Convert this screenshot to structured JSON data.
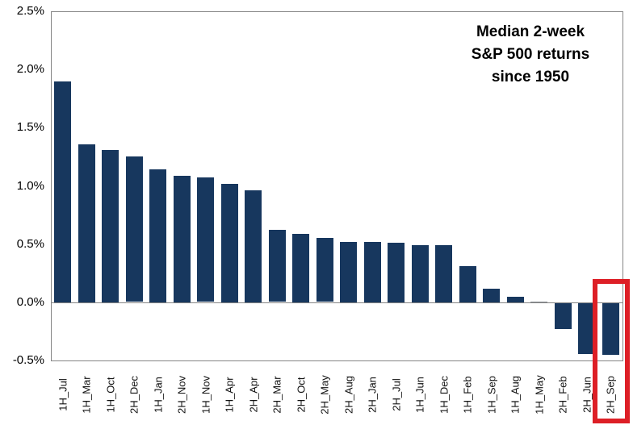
{
  "chart_data": {
    "type": "bar",
    "title": "Median 2-week S&P 500 returns since 1950",
    "title_lines": [
      "Median 2-week",
      "S&P 500 returns",
      "since 1950"
    ],
    "unit": "%",
    "categories": [
      "1H_Jul",
      "1H_Mar",
      "1H_Oct",
      "2H_Dec",
      "1H_Jan",
      "2H_Nov",
      "1H_Nov",
      "1H_Apr",
      "2H_Apr",
      "2H_Mar",
      "2H_Oct",
      "2H_May",
      "2H_Aug",
      "2H_Jan",
      "2H_Jul",
      "1H_Jun",
      "1H_Dec",
      "1H_Feb",
      "1H_Sep",
      "1H_Aug",
      "1H_May",
      "2H_Feb",
      "2H_Jun",
      "2H_Sep"
    ],
    "values": [
      1.9,
      1.36,
      1.31,
      1.25,
      1.14,
      1.09,
      1.07,
      1.02,
      0.96,
      0.62,
      0.59,
      0.55,
      0.52,
      0.52,
      0.51,
      0.49,
      0.49,
      0.31,
      0.12,
      0.05,
      0.0,
      -0.23,
      -0.44,
      -0.45
    ],
    "xlabel": "",
    "ylabel": "",
    "ylim": [
      -0.5,
      2.5
    ],
    "y_ticks": [
      "2.5%",
      "2.0%",
      "1.5%",
      "1.0%",
      "0.5%",
      "0.0%",
      "-0.5%"
    ],
    "y_tick_values": [
      2.5,
      2.0,
      1.5,
      1.0,
      0.5,
      0.0,
      -0.5
    ],
    "grid": "zero-line-only",
    "legend": "none",
    "highlighted_category": "2H_Sep",
    "colors": {
      "bar": "#17375e",
      "zero_height_bar": "#8a8f94",
      "highlight_box": "#dd1f26",
      "axis": "#848484",
      "text": "#000000",
      "background": "#ffffff"
    }
  }
}
